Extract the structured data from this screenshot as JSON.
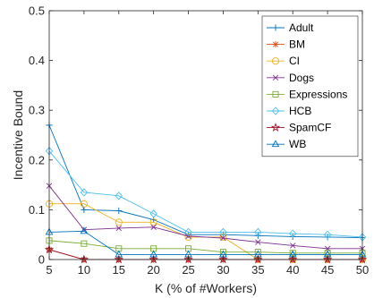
{
  "chart_data": {
    "type": "line",
    "title": "",
    "xlabel": "K (% of #Workers)",
    "ylabel": "Incentive Bound",
    "x": [
      5,
      10,
      15,
      20,
      25,
      30,
      35,
      40,
      45,
      50
    ],
    "xlim": [
      5,
      50
    ],
    "ylim": [
      0,
      0.5
    ],
    "xticks": [
      "5",
      "10",
      "15",
      "20",
      "25",
      "30",
      "35",
      "40",
      "45",
      "50"
    ],
    "yticks": [
      "0",
      "0.1",
      "0.2",
      "0.3",
      "0.4",
      "0.5"
    ],
    "grid": false,
    "legend_position": "top-right",
    "series": [
      {
        "name": "Adult",
        "color": "#0072BD",
        "marker": "plus",
        "values": [
          0.27,
          0.1,
          0.098,
          0.08,
          0.05,
          0.05,
          0.048,
          0.046,
          0.045,
          0.044
        ]
      },
      {
        "name": "BM",
        "color": "#D95319",
        "marker": "asterisk",
        "values": [
          0.02,
          0.0,
          0.0,
          0.0,
          0.0,
          0.0,
          0.0,
          0.0,
          0.0,
          0.0
        ]
      },
      {
        "name": "CI",
        "color": "#EDB120",
        "marker": "circle",
        "values": [
          0.112,
          0.112,
          0.075,
          0.075,
          0.045,
          0.045,
          0.0,
          0.0,
          0.0,
          0.0
        ]
      },
      {
        "name": "Dogs",
        "color": "#7E2F8E",
        "marker": "x",
        "values": [
          0.148,
          0.06,
          0.063,
          0.065,
          0.047,
          0.043,
          0.035,
          0.028,
          0.022,
          0.022
        ]
      },
      {
        "name": "Expressions",
        "color": "#77AC30",
        "marker": "square",
        "values": [
          0.038,
          0.032,
          0.022,
          0.022,
          0.022,
          0.015,
          0.015,
          0.013,
          0.013,
          0.013
        ]
      },
      {
        "name": "HCB",
        "color": "#4DBEEE",
        "marker": "diamond",
        "values": [
          0.218,
          0.135,
          0.128,
          0.092,
          0.055,
          0.055,
          0.055,
          0.052,
          0.05,
          0.045
        ]
      },
      {
        "name": "SpamCF",
        "color": "#A2142F",
        "marker": "pentagram",
        "values": [
          0.02,
          0.0,
          0.0,
          0.0,
          0.0,
          0.0,
          0.0,
          0.0,
          0.0,
          0.0
        ]
      },
      {
        "name": "WB",
        "color": "#0072BD",
        "marker": "triangle",
        "values": [
          0.055,
          0.057,
          0.01,
          0.01,
          0.01,
          0.01,
          0.01,
          0.01,
          0.01,
          0.01
        ]
      }
    ]
  }
}
